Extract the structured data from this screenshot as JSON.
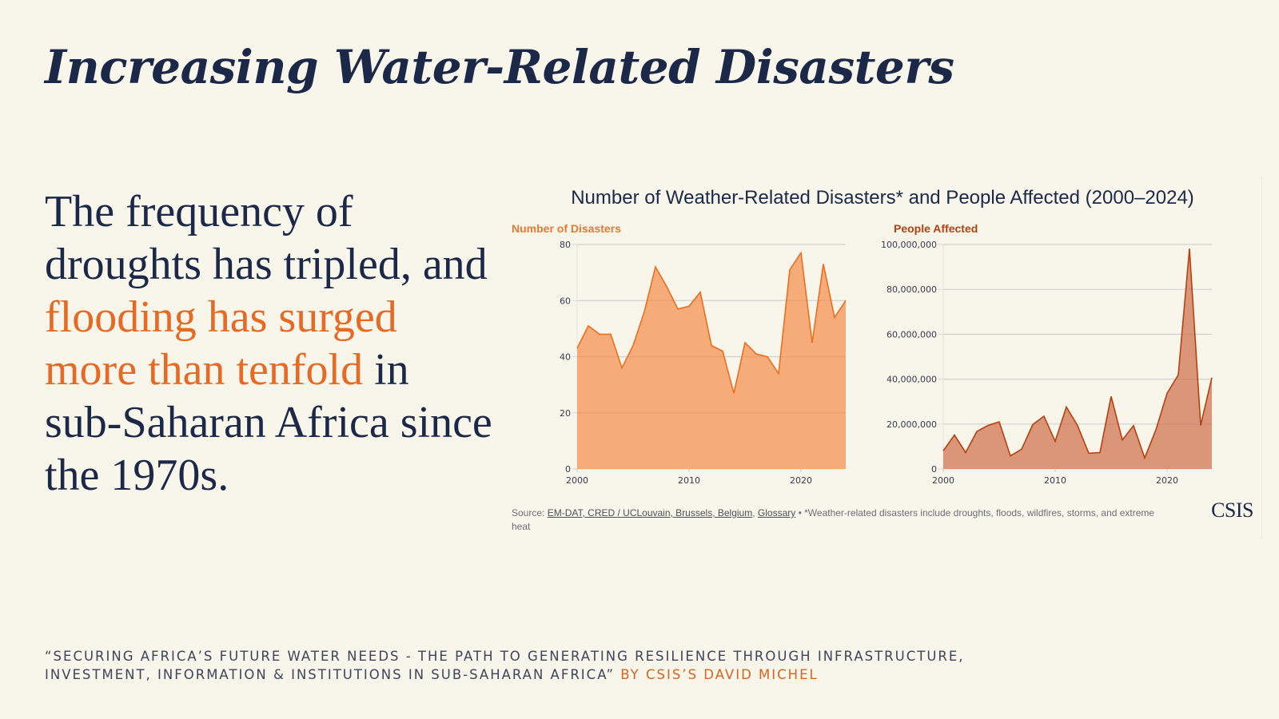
{
  "slide": {
    "title": "Increasing Water-Related Disasters",
    "lead": {
      "part1": "The frequency of droughts has tripled, and ",
      "highlight": "flooding has surged more than tenfold",
      "part2": " in sub-Saharan Africa since the 1970s."
    },
    "footer": {
      "quote": "“Securing Africa’s Future Water Needs - The Path to Generating Resilience through Infrastructure, Investment, Information & Institutions in Sub-Saharan Africa”",
      "byline": " by CSIS’s David Michel"
    },
    "colors": {
      "background": "#f8f5eb",
      "navy": "#1b2847",
      "accent_orange": "#e46a25",
      "series1_line": "#ec6e1f",
      "series1_fill": "#f4a873",
      "series2_line": "#b7410e",
      "series2_fill": "#d98f72"
    }
  },
  "chart_panel": {
    "title": "Number of Weather-Related Disasters* and People Affected (2000–2024)",
    "source_prefix": "Source: ",
    "source_link1": "EM-DAT, CRED / UCLouvain, Brussels, Belgium",
    "source_sep": ", ",
    "source_link2": "Glossary",
    "source_note": " • *Weather-related disasters include droughts, floods, wildfires, storms, and extreme heat",
    "logo": "CSIS"
  },
  "chart_data": [
    {
      "type": "area",
      "title": "Number of Disasters",
      "xlabel": "",
      "ylabel": "",
      "x": [
        2000,
        2001,
        2002,
        2003,
        2004,
        2005,
        2006,
        2007,
        2008,
        2009,
        2010,
        2011,
        2012,
        2013,
        2014,
        2015,
        2016,
        2017,
        2018,
        2019,
        2020,
        2021,
        2022,
        2023,
        2024
      ],
      "values": [
        43,
        51,
        48,
        48,
        36,
        44,
        56,
        72,
        65,
        57,
        58,
        63,
        44,
        42,
        27,
        45,
        41,
        40,
        34,
        71,
        77,
        45,
        73,
        54,
        60
      ],
      "xlim": [
        2000,
        2024
      ],
      "ylim": [
        0,
        80
      ],
      "xticks": [
        2000,
        2010,
        2020
      ],
      "yticks": [
        0,
        20,
        40,
        60,
        80
      ],
      "ytick_labels": [
        "0",
        "20",
        "40",
        "60",
        "80"
      ],
      "grid": true,
      "legend": "none"
    },
    {
      "type": "area",
      "title": "People Affected",
      "xlabel": "",
      "ylabel": "",
      "x": [
        2000,
        2001,
        2002,
        2003,
        2004,
        2005,
        2006,
        2007,
        2008,
        2009,
        2010,
        2011,
        2012,
        2013,
        2014,
        2015,
        2016,
        2017,
        2018,
        2019,
        2020,
        2021,
        2022,
        2023,
        2024
      ],
      "values": [
        8100000,
        15100000,
        7300000,
        16700000,
        19400000,
        21000000,
        5800000,
        8800000,
        19800000,
        23500000,
        12300000,
        27600000,
        19300000,
        7000000,
        7300000,
        32300000,
        12900000,
        19300000,
        4900000,
        17400000,
        33700000,
        41900000,
        98100000,
        19400000,
        40700000
      ],
      "xlim": [
        2000,
        2024
      ],
      "ylim": [
        0,
        100000000
      ],
      "xticks": [
        2000,
        2010,
        2020
      ],
      "yticks": [
        0,
        20000000,
        40000000,
        60000000,
        80000000,
        100000000
      ],
      "ytick_labels": [
        "0",
        "20,000,000",
        "40,000,000",
        "60,000,000",
        "80,000,000",
        "100,000,000"
      ],
      "grid": true,
      "legend": "none"
    }
  ]
}
